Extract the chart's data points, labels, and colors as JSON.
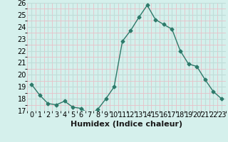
{
  "x": [
    0,
    1,
    2,
    3,
    4,
    5,
    6,
    7,
    8,
    9,
    10,
    11,
    12,
    13,
    14,
    15,
    16,
    17,
    18,
    19,
    20,
    21,
    22,
    23
  ],
  "y": [
    19.2,
    18.3,
    17.6,
    17.5,
    17.8,
    17.3,
    17.2,
    16.7,
    17.1,
    18.0,
    19.0,
    22.8,
    23.7,
    24.8,
    25.8,
    24.6,
    24.2,
    23.8,
    22.0,
    20.9,
    20.7,
    19.6,
    18.6,
    18.0
  ],
  "line_color": "#2d7a6a",
  "marker": "D",
  "marker_size": 2.5,
  "bg_color": "#d5f0ec",
  "major_grid_color": "#c0ddd9",
  "minor_grid_color": "#e8c0c8",
  "xlabel": "Humidex (Indice chaleur)",
  "xlabel_fontsize": 8,
  "ylim": [
    17,
    26
  ],
  "yticks": [
    17,
    18,
    19,
    20,
    21,
    22,
    23,
    24,
    25,
    26
  ],
  "xtick_labels": [
    "0",
    "1",
    "2",
    "3",
    "4",
    "5",
    "6",
    "7",
    "8",
    "9",
    "10",
    "11",
    "12",
    "13",
    "14",
    "15",
    "16",
    "17",
    "18",
    "19",
    "20",
    "21",
    "22",
    "23"
  ],
  "tick_fontsize": 7,
  "line_width": 1.0,
  "figsize": [
    3.2,
    2.0
  ],
  "dpi": 100
}
